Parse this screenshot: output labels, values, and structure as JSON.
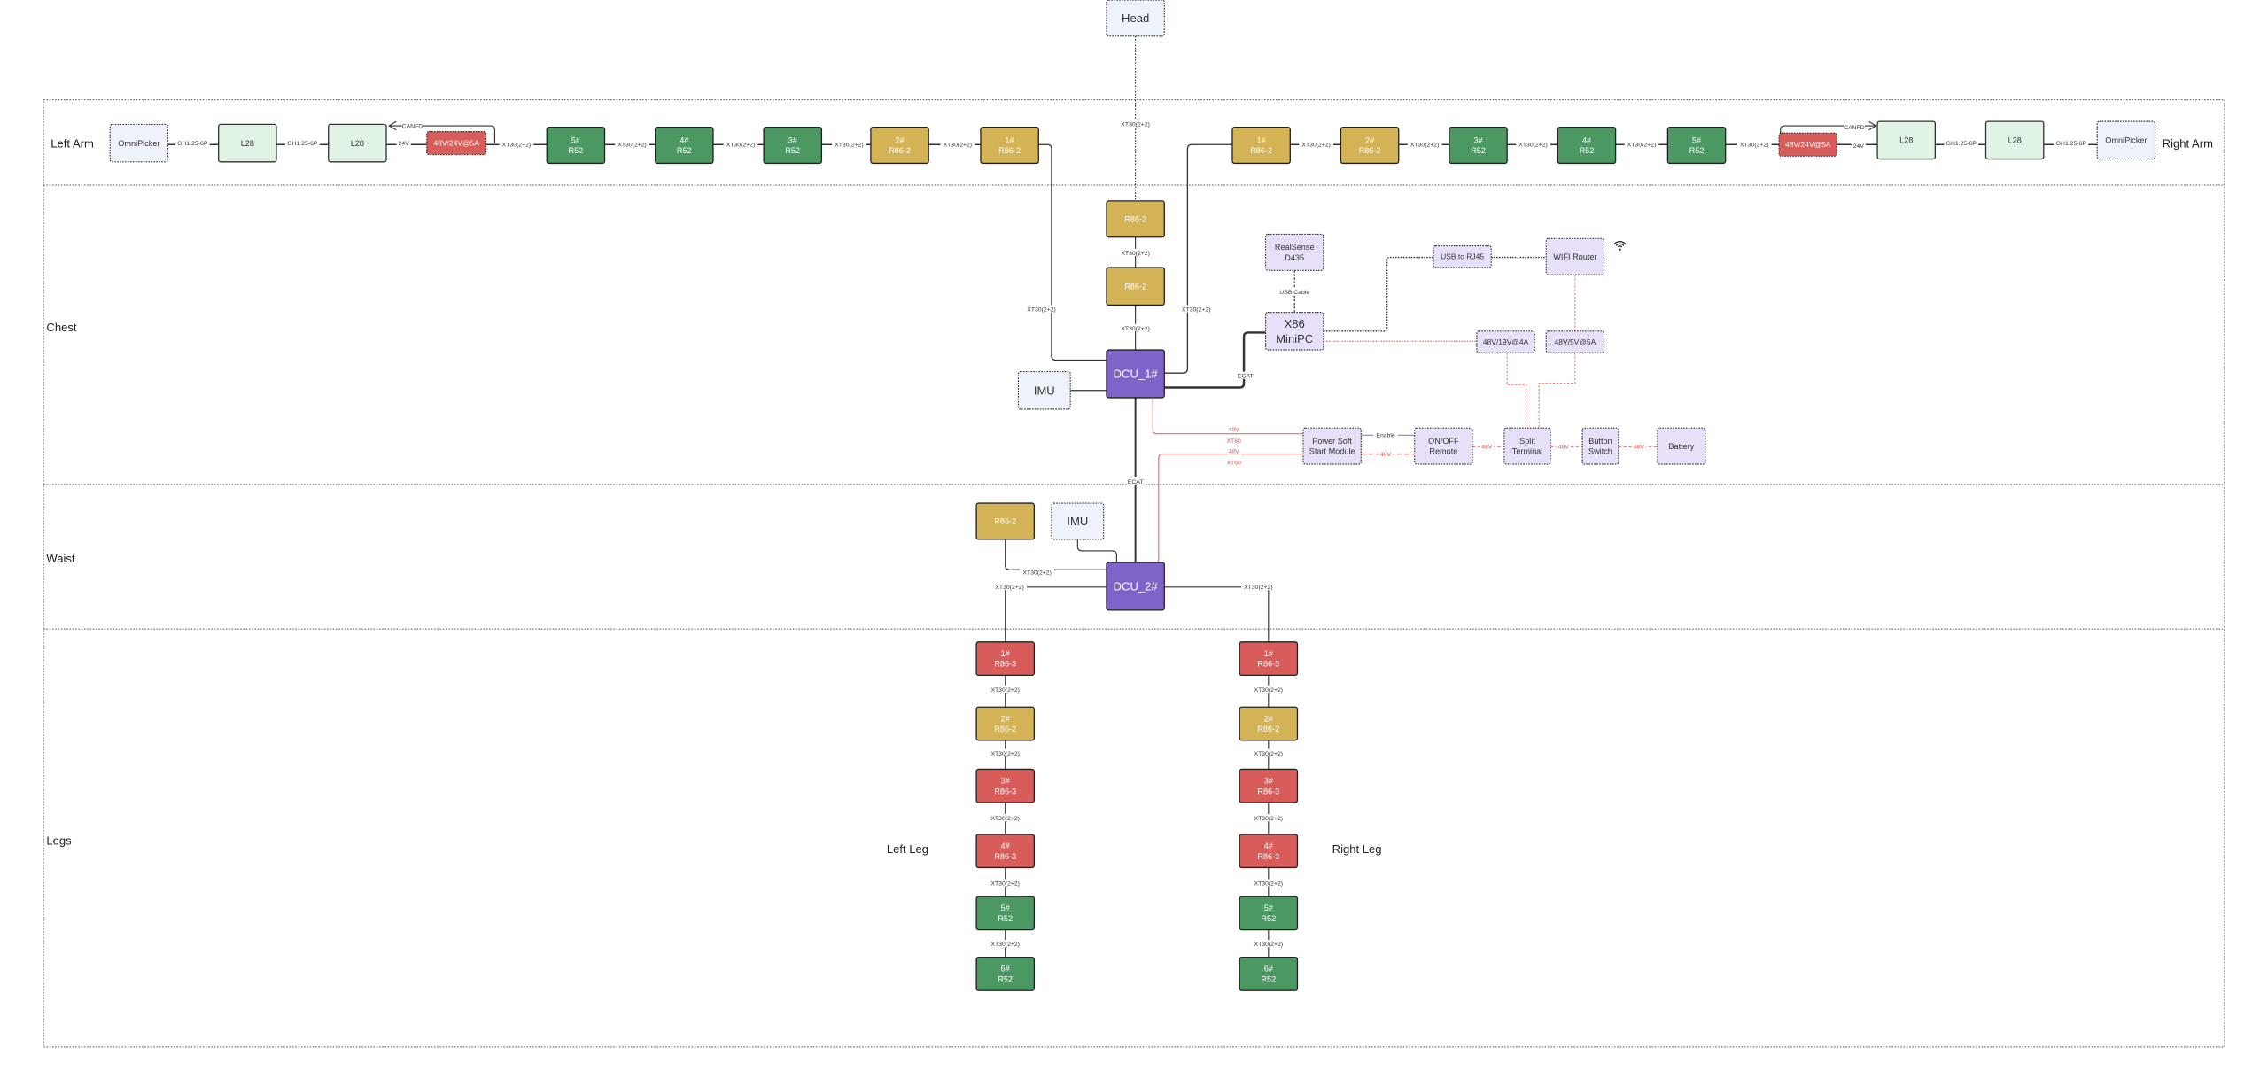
{
  "sections": {
    "left_arm": "Left Arm",
    "right_arm": "Right Arm",
    "chest": "Chest",
    "waist": "Waist",
    "legs": "Legs",
    "left_leg": "Left Leg",
    "right_leg": "Right Leg"
  },
  "colors": {
    "r52": "#4b9862",
    "r86_2": "#d4b357",
    "r86_3": "#d85c5a",
    "dcu": "#7e64c9",
    "l28": "#e1f3e4",
    "imu_omni": "#edf2fb",
    "peripheral": "#e7e0f8",
    "power_line": "#e07070",
    "enable_line": "#6b8fd6"
  },
  "nodes": [
    {
      "id": "head",
      "lines": [
        "Head"
      ],
      "kind": "light"
    },
    {
      "id": "la_omni",
      "lines": [
        "OmniPicker"
      ],
      "kind": "light"
    },
    {
      "id": "la_l28a",
      "lines": [
        "L28"
      ],
      "kind": "l28"
    },
    {
      "id": "la_l28b",
      "lines": [
        "L28"
      ],
      "kind": "l28"
    },
    {
      "id": "la_pwr",
      "lines": [
        "48V/24V@5A"
      ],
      "kind": "power"
    },
    {
      "id": "la_5",
      "lines": [
        "5#",
        "R52"
      ],
      "kind": "r52"
    },
    {
      "id": "la_4",
      "lines": [
        "4#",
        "R52"
      ],
      "kind": "r52"
    },
    {
      "id": "la_3",
      "lines": [
        "3#",
        "R52"
      ],
      "kind": "r52"
    },
    {
      "id": "la_2",
      "lines": [
        "2#",
        "R86-2"
      ],
      "kind": "r86_2"
    },
    {
      "id": "la_1",
      "lines": [
        "1#",
        "R86-2"
      ],
      "kind": "r86_2"
    },
    {
      "id": "ra_1",
      "lines": [
        "1#",
        "R86-2"
      ],
      "kind": "r86_2"
    },
    {
      "id": "ra_2",
      "lines": [
        "2#",
        "R86-2"
      ],
      "kind": "r86_2"
    },
    {
      "id": "ra_3",
      "lines": [
        "3#",
        "R52"
      ],
      "kind": "r52"
    },
    {
      "id": "ra_4",
      "lines": [
        "4#",
        "R52"
      ],
      "kind": "r52"
    },
    {
      "id": "ra_5",
      "lines": [
        "5#",
        "R52"
      ],
      "kind": "r52"
    },
    {
      "id": "ra_pwr",
      "lines": [
        "48V/24V@5A"
      ],
      "kind": "power"
    },
    {
      "id": "ra_l28a",
      "lines": [
        "L28"
      ],
      "kind": "l28"
    },
    {
      "id": "ra_l28b",
      "lines": [
        "L28"
      ],
      "kind": "l28"
    },
    {
      "id": "ra_omni",
      "lines": [
        "OmniPicker"
      ],
      "kind": "light"
    },
    {
      "id": "ch_r1",
      "lines": [
        "R86-2"
      ],
      "kind": "r86_2"
    },
    {
      "id": "ch_r2",
      "lines": [
        "R86-2"
      ],
      "kind": "r86_2"
    },
    {
      "id": "dcu1",
      "lines": [
        "DCU_1#"
      ],
      "kind": "dcu"
    },
    {
      "id": "imu1",
      "lines": [
        "IMU"
      ],
      "kind": "light"
    },
    {
      "id": "realsense",
      "lines": [
        "RealSense",
        "D435"
      ],
      "kind": "peri"
    },
    {
      "id": "x86",
      "lines": [
        "X86",
        "MiniPC"
      ],
      "kind": "peri"
    },
    {
      "id": "usb_rj45",
      "lines": [
        "USB to RJ45"
      ],
      "kind": "peri"
    },
    {
      "id": "wifi",
      "lines": [
        "WIFI Router"
      ],
      "kind": "peri"
    },
    {
      "id": "p19",
      "lines": [
        "48V/19V@4A"
      ],
      "kind": "peri"
    },
    {
      "id": "p5",
      "lines": [
        "48V/5V@5A"
      ],
      "kind": "peri"
    },
    {
      "id": "pss",
      "lines": [
        "Power Soft",
        "Start Module"
      ],
      "kind": "peri"
    },
    {
      "id": "onoff",
      "lines": [
        "ON/OFF",
        "Remote"
      ],
      "kind": "peri"
    },
    {
      "id": "split",
      "lines": [
        "Split",
        "Terminal"
      ],
      "kind": "peri"
    },
    {
      "id": "button",
      "lines": [
        "Button",
        "Switch"
      ],
      "kind": "peri"
    },
    {
      "id": "battery",
      "lines": [
        "Battery"
      ],
      "kind": "peri"
    },
    {
      "id": "wa_r",
      "lines": [
        "R86-2"
      ],
      "kind": "r86_2"
    },
    {
      "id": "imu2",
      "lines": [
        "IMU"
      ],
      "kind": "light"
    },
    {
      "id": "dcu2",
      "lines": [
        "DCU_2#"
      ],
      "kind": "dcu"
    },
    {
      "id": "ll_1",
      "lines": [
        "1#",
        "R86-3"
      ],
      "kind": "r86_3"
    },
    {
      "id": "ll_2",
      "lines": [
        "2#",
        "R86-2"
      ],
      "kind": "r86_2"
    },
    {
      "id": "ll_3",
      "lines": [
        "3#",
        "R86-3"
      ],
      "kind": "r86_3"
    },
    {
      "id": "ll_4",
      "lines": [
        "4#",
        "R86-3"
      ],
      "kind": "r86_3"
    },
    {
      "id": "ll_5",
      "lines": [
        "5#",
        "R52"
      ],
      "kind": "r52"
    },
    {
      "id": "ll_6",
      "lines": [
        "6#",
        "R52"
      ],
      "kind": "r52"
    },
    {
      "id": "rl_1",
      "lines": [
        "1#",
        "R86-3"
      ],
      "kind": "r86_3"
    },
    {
      "id": "rl_2",
      "lines": [
        "2#",
        "R86-2"
      ],
      "kind": "r86_2"
    },
    {
      "id": "rl_3",
      "lines": [
        "3#",
        "R86-3"
      ],
      "kind": "r86_3"
    },
    {
      "id": "rl_4",
      "lines": [
        "4#",
        "R86-3"
      ],
      "kind": "r86_3"
    },
    {
      "id": "rl_5",
      "lines": [
        "5#",
        "R52"
      ],
      "kind": "r52"
    },
    {
      "id": "rl_6",
      "lines": [
        "6#",
        "R52"
      ],
      "kind": "r52"
    }
  ],
  "connector_labels": [
    "GH1.25-6P",
    "GH1.25-6P",
    "24V",
    "XT30(2+2)",
    "XT30(2+2)",
    "XT30(2+2)",
    "XT30(2+2)",
    "XT30(2+2)",
    "CANFD",
    "XT30(2+2)",
    "XT30(2+2)",
    "XT30(2+2)",
    "XT30(2+2)",
    "XT30(2+2)",
    "24V",
    "GH1.25-6P",
    "GH1.25-6P",
    "CANFD",
    "XT30(2+2)",
    "XT30(2+2)",
    "XT30(2+2)",
    "XT30(2+2)",
    "XT30(2+2)",
    "ECAT",
    "USB Cable",
    "48V",
    "XT60",
    "48V",
    "XT60",
    "Enable",
    "48V",
    "48V",
    "48V",
    "48V",
    "ECAT",
    "XT30(2+2)",
    "XT30(2+2)",
    "XT30(2+2)",
    "XT30(2+2)",
    "XT30(2+2)",
    "XT30(2+2)",
    "XT30(2+2)",
    "XT30(2+2)",
    "XT30(2+2)",
    "XT30(2+2)",
    "XT30(2+2)",
    "XT30(2+2)",
    "XT30(2+2)"
  ],
  "icons": {
    "wifi": "wifi-icon"
  }
}
